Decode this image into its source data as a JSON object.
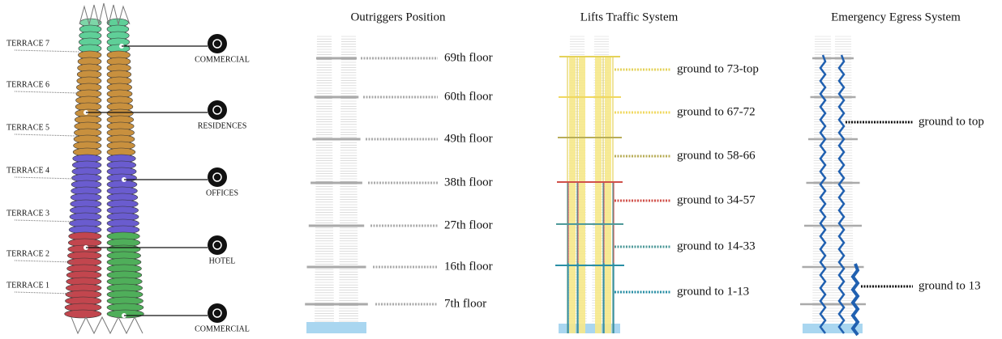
{
  "tower": {
    "terraces": [
      "TERRACE 7",
      "TERRACE 6",
      "TERRACE 5",
      "TERRACE 4",
      "TERRACE 3",
      "TERRACE 2",
      "TERRACE 1"
    ],
    "functions": [
      "COMMERCIAL",
      "RESIDENCES",
      "OFFICES",
      "HOTEL",
      "COMMERCIAL"
    ]
  },
  "outriggers": {
    "title": "Outriggers Position",
    "floors": [
      "69th floor",
      "60th floor",
      "49th floor",
      "38th floor",
      "27th floor",
      "16th floor",
      "7th floor"
    ]
  },
  "lifts": {
    "title": "Lifts Traffic System",
    "zones": [
      "ground to 73-top",
      "ground to 67-72",
      "ground to 58-66",
      "ground to 34-57",
      "ground to 14-33",
      "ground to 1-13"
    ]
  },
  "egress": {
    "title": "Emergency Egress System",
    "routes": [
      "ground to top",
      "ground to 13"
    ]
  }
}
